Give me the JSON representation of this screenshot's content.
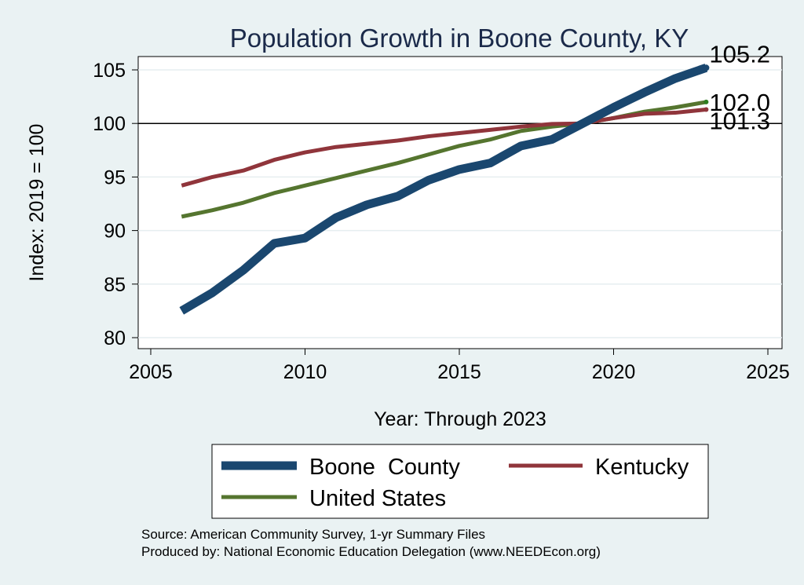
{
  "chart_data": {
    "type": "line",
    "title": "Population Growth in Boone County, KY",
    "xlabel": "Year: Through 2023",
    "ylabel": "Index: 2019 = 100",
    "xlim": [
      2004.5,
      2026
    ],
    "ylim": [
      79,
      106.5
    ],
    "xticks": [
      2005,
      2010,
      2015,
      2020,
      2025
    ],
    "yticks": [
      80,
      85,
      90,
      95,
      100,
      105
    ],
    "reference_line": 100,
    "x": [
      2006,
      2007,
      2008,
      2009,
      2010,
      2011,
      2012,
      2013,
      2014,
      2015,
      2016,
      2017,
      2018,
      2019,
      2020,
      2021,
      2022,
      2023
    ],
    "series": [
      {
        "name": "Boone  County",
        "color": "#1a476f",
        "values": [
          82.5,
          84.2,
          86.3,
          88.8,
          89.3,
          91.2,
          92.4,
          93.2,
          94.7,
          95.7,
          96.3,
          97.9,
          98.5,
          100.0,
          101.5,
          102.9,
          104.2,
          105.2
        ],
        "end_label": "105.2"
      },
      {
        "name": "Kentucky",
        "color": "#90353b",
        "values": [
          94.2,
          95.0,
          95.6,
          96.6,
          97.3,
          97.8,
          98.1,
          98.4,
          98.8,
          99.1,
          99.4,
          99.7,
          99.95,
          100.0,
          100.5,
          100.9,
          101.0,
          101.3
        ],
        "end_label": "101.3"
      },
      {
        "name": "United States",
        "color": "#55752f",
        "values": [
          91.3,
          91.9,
          92.6,
          93.5,
          94.2,
          94.9,
          95.6,
          96.3,
          97.1,
          97.9,
          98.5,
          99.3,
          99.7,
          100.0,
          100.5,
          101.1,
          101.5,
          102.0
        ],
        "end_label": "102.0"
      }
    ],
    "legend": {
      "position": "bottom",
      "entries": [
        "Boone  County",
        "Kentucky",
        "United States"
      ]
    }
  },
  "source": {
    "line1": "Source: American Community Survey, 1-yr Summary Files",
    "line2": "Produced by: National Economic Education Delegation (www.NEEDEcon.org)"
  }
}
